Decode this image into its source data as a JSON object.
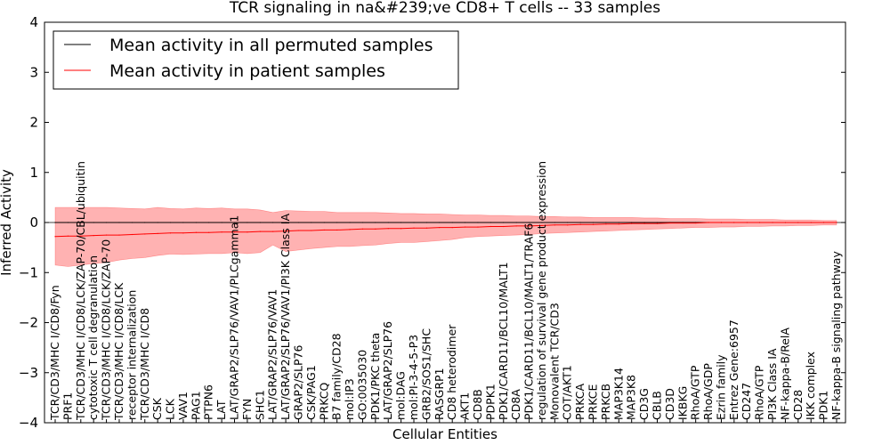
{
  "chart_data": {
    "type": "line",
    "title": "TCR signaling in na&#239;ve CD8+ T cells -- 33 samples",
    "xlabel": "Cellular Entities",
    "ylabel": "Inferred Activity",
    "ylim": [
      -4,
      4
    ],
    "yticks": [
      -4,
      -3,
      -2,
      -1,
      0,
      1,
      2,
      3,
      4
    ],
    "legend_location": "top-left",
    "entities": [
      {
        "label": "TCR/CD3/MHC I/CD8/Fyn",
        "perm_mean": 0.0,
        "patient_mean": -0.28,
        "band_low": -0.85,
        "band_high": 0.3
      },
      {
        "label": "PRF1",
        "perm_mean": 0.0,
        "patient_mean": -0.27,
        "band_low": -0.88,
        "band_high": 0.3
      },
      {
        "label": "TCR/CD3/MHC I/CD8/LCK/ZAP-70/CBL/ubiquitin",
        "perm_mean": 0.0,
        "patient_mean": -0.27,
        "band_low": -0.85,
        "band_high": 0.3
      },
      {
        "label": "cytotoxic T cell degranulation",
        "perm_mean": 0.0,
        "patient_mean": -0.26,
        "band_low": -0.82,
        "band_high": 0.3
      },
      {
        "label": "TCR/CD3/MHC I/CD8/LCK/ZAP-70",
        "perm_mean": 0.0,
        "patient_mean": -0.25,
        "band_low": -0.8,
        "band_high": 0.3
      },
      {
        "label": "TCR/CD3/MHC I/CD8/LCK",
        "perm_mean": 0.0,
        "patient_mean": -0.25,
        "band_low": -0.75,
        "band_high": 0.29
      },
      {
        "label": "receptor internalization",
        "perm_mean": 0.0,
        "patient_mean": -0.24,
        "band_low": -0.72,
        "band_high": 0.28
      },
      {
        "label": "TCR/CD3/MHC I/CD8",
        "perm_mean": 0.0,
        "patient_mean": -0.23,
        "band_low": -0.7,
        "band_high": 0.27
      },
      {
        "label": "CSK",
        "perm_mean": 0.0,
        "patient_mean": -0.22,
        "band_low": -0.66,
        "band_high": 0.3
      },
      {
        "label": "LCK",
        "perm_mean": 0.0,
        "patient_mean": -0.21,
        "band_low": -0.63,
        "band_high": 0.28
      },
      {
        "label": "VAV1",
        "perm_mean": 0.0,
        "patient_mean": -0.21,
        "band_low": -0.64,
        "band_high": 0.27
      },
      {
        "label": "PAG1",
        "perm_mean": 0.0,
        "patient_mean": -0.2,
        "band_low": -0.63,
        "band_high": 0.29
      },
      {
        "label": "PTPN6",
        "perm_mean": 0.0,
        "patient_mean": -0.2,
        "band_low": -0.62,
        "band_high": 0.28
      },
      {
        "label": "LAT",
        "perm_mean": 0.0,
        "patient_mean": -0.19,
        "band_low": -0.62,
        "band_high": 0.29
      },
      {
        "label": "LAT/GRAP2/SLP76/VAV1/PLCgamma1",
        "perm_mean": 0.0,
        "patient_mean": -0.19,
        "band_low": -0.6,
        "band_high": 0.27
      },
      {
        "label": "FYN",
        "perm_mean": 0.0,
        "patient_mean": -0.19,
        "band_low": -0.62,
        "band_high": 0.27
      },
      {
        "label": "SHC1",
        "perm_mean": 0.0,
        "patient_mean": -0.18,
        "band_low": -0.6,
        "band_high": 0.25
      },
      {
        "label": "LAT/GRAP2/SLP76/VAV1",
        "perm_mean": 0.0,
        "patient_mean": -0.18,
        "band_low": -0.45,
        "band_high": 0.2
      },
      {
        "label": "LAT/GRAP2/SLP76/VAV1/PI3K Class IA",
        "perm_mean": 0.0,
        "patient_mean": -0.17,
        "band_low": -0.58,
        "band_high": 0.24
      },
      {
        "label": "GRAP2/SLP76",
        "perm_mean": 0.0,
        "patient_mean": -0.16,
        "band_low": -0.55,
        "band_high": 0.23
      },
      {
        "label": "CSK/PAG1",
        "perm_mean": 0.0,
        "patient_mean": -0.16,
        "band_low": -0.52,
        "band_high": 0.22
      },
      {
        "label": "PRKCQ",
        "perm_mean": 0.0,
        "patient_mean": -0.15,
        "band_low": -0.5,
        "band_high": 0.22
      },
      {
        "label": "B7 family/CD28",
        "perm_mean": 0.0,
        "patient_mean": -0.15,
        "band_low": -0.48,
        "band_high": 0.2
      },
      {
        "label": "mol:IP3",
        "perm_mean": 0.0,
        "patient_mean": -0.14,
        "band_low": -0.48,
        "band_high": 0.2
      },
      {
        "label": "GO:0035030",
        "perm_mean": 0.0,
        "patient_mean": -0.13,
        "band_low": -0.46,
        "band_high": 0.2
      },
      {
        "label": "PDK1/PKC theta",
        "perm_mean": 0.0,
        "patient_mean": -0.13,
        "band_low": -0.45,
        "band_high": 0.2
      },
      {
        "label": "LAT/GRAP2/SLP76",
        "perm_mean": 0.0,
        "patient_mean": -0.12,
        "band_low": -0.42,
        "band_high": 0.19
      },
      {
        "label": "mol:DAG",
        "perm_mean": 0.0,
        "patient_mean": -0.12,
        "band_low": -0.4,
        "band_high": 0.18
      },
      {
        "label": "mol:PI-3-4-5-P3",
        "perm_mean": 0.0,
        "patient_mean": -0.11,
        "band_low": -0.4,
        "band_high": 0.18
      },
      {
        "label": "GRB2/SOS1/SHC",
        "perm_mean": 0.0,
        "patient_mean": -0.11,
        "band_low": -0.38,
        "band_high": 0.17
      },
      {
        "label": "RASGRP1",
        "perm_mean": 0.0,
        "patient_mean": -0.1,
        "band_low": -0.36,
        "band_high": 0.17
      },
      {
        "label": "CD8 heterodimer",
        "perm_mean": 0.0,
        "patient_mean": -0.1,
        "band_low": -0.34,
        "band_high": 0.16
      },
      {
        "label": "AKT1",
        "perm_mean": 0.0,
        "patient_mean": -0.09,
        "band_low": -0.3,
        "band_high": 0.15
      },
      {
        "label": "CD8B",
        "perm_mean": 0.0,
        "patient_mean": -0.09,
        "band_low": -0.28,
        "band_high": 0.15
      },
      {
        "label": "PDPK1",
        "perm_mean": 0.0,
        "patient_mean": -0.08,
        "band_low": -0.27,
        "band_high": 0.14
      },
      {
        "label": "PDK1/CARD11/BCL10/MALT1",
        "perm_mean": 0.0,
        "patient_mean": -0.08,
        "band_low": -0.26,
        "band_high": 0.14
      },
      {
        "label": "CD8A",
        "perm_mean": 0.0,
        "patient_mean": -0.07,
        "band_low": -0.25,
        "band_high": 0.13
      },
      {
        "label": "PDK1/CARD11/BCL10/MALT1/TRAF6",
        "perm_mean": 0.0,
        "patient_mean": -0.07,
        "band_low": -0.24,
        "band_high": 0.13
      },
      {
        "label": "regulation of survival gene product expression",
        "perm_mean": 0.0,
        "patient_mean": -0.06,
        "band_low": -0.22,
        "band_high": 0.12
      },
      {
        "label": "Monovalent TCR/CD3",
        "perm_mean": 0.0,
        "patient_mean": -0.05,
        "band_low": -0.21,
        "band_high": 0.12
      },
      {
        "label": "COT/AKT1",
        "perm_mean": 0.0,
        "patient_mean": -0.05,
        "band_low": -0.2,
        "band_high": 0.11
      },
      {
        "label": "PRKCA",
        "perm_mean": 0.0,
        "patient_mean": -0.04,
        "band_low": -0.19,
        "band_high": 0.11
      },
      {
        "label": "PRKCE",
        "perm_mean": 0.0,
        "patient_mean": -0.04,
        "band_low": -0.18,
        "band_high": 0.1
      },
      {
        "label": "PRKCB",
        "perm_mean": 0.0,
        "patient_mean": -0.03,
        "band_low": -0.17,
        "band_high": 0.1
      },
      {
        "label": "MAP3K14",
        "perm_mean": 0.0,
        "patient_mean": -0.03,
        "band_low": -0.16,
        "band_high": 0.1
      },
      {
        "label": "MAP3K8",
        "perm_mean": 0.0,
        "patient_mean": -0.02,
        "band_low": -0.15,
        "band_high": 0.1
      },
      {
        "label": "CD3G",
        "perm_mean": 0.0,
        "patient_mean": -0.02,
        "band_low": -0.14,
        "band_high": 0.09
      },
      {
        "label": "CBLB",
        "perm_mean": 0.0,
        "patient_mean": -0.02,
        "band_low": -0.13,
        "band_high": 0.09
      },
      {
        "label": "CD3D",
        "perm_mean": 0.0,
        "patient_mean": -0.01,
        "band_low": -0.12,
        "band_high": 0.08
      },
      {
        "label": "IKBKG",
        "perm_mean": 0.0,
        "patient_mean": -0.01,
        "band_low": -0.11,
        "band_high": 0.08
      },
      {
        "label": "RhoA/GTP",
        "perm_mean": 0.0,
        "patient_mean": -0.01,
        "band_low": -0.1,
        "band_high": 0.08
      },
      {
        "label": "RhoA/GDP",
        "perm_mean": 0.0,
        "patient_mean": 0.0,
        "band_low": -0.1,
        "band_high": 0.07
      },
      {
        "label": "Ezrin family",
        "perm_mean": 0.0,
        "patient_mean": 0.0,
        "band_low": -0.09,
        "band_high": 0.07
      },
      {
        "label": "Entrez Gene:6957",
        "perm_mean": 0.0,
        "patient_mean": 0.0,
        "band_low": -0.09,
        "band_high": 0.07
      },
      {
        "label": "CD247",
        "perm_mean": 0.0,
        "patient_mean": 0.0,
        "band_low": -0.08,
        "band_high": 0.06
      },
      {
        "label": "RhoA/GTP",
        "perm_mean": 0.0,
        "patient_mean": 0.0,
        "band_low": -0.08,
        "band_high": 0.06
      },
      {
        "label": "PI3K Class IA",
        "perm_mean": 0.0,
        "patient_mean": 0.0,
        "band_low": -0.07,
        "band_high": 0.06
      },
      {
        "label": "NF-kappa-B/RelA",
        "perm_mean": 0.0,
        "patient_mean": 0.0,
        "band_low": -0.07,
        "band_high": 0.05
      },
      {
        "label": "CD28",
        "perm_mean": 0.0,
        "patient_mean": 0.0,
        "band_low": -0.06,
        "band_high": 0.05
      },
      {
        "label": "IKK complex",
        "perm_mean": 0.0,
        "patient_mean": 0.0,
        "band_low": -0.06,
        "band_high": 0.05
      },
      {
        "label": "PDK1",
        "perm_mean": 0.0,
        "patient_mean": 0.0,
        "band_low": -0.05,
        "band_high": 0.04
      },
      {
        "label": "NF-kappa-B signaling pathway",
        "perm_mean": 0.0,
        "patient_mean": 0.0,
        "band_low": -0.05,
        "band_high": 0.04
      }
    ],
    "series": [
      {
        "name": "Mean activity in all permuted samples",
        "color": "#000000",
        "key": "perm_mean"
      },
      {
        "name": "Mean activity in patient samples",
        "color": "#ff0000",
        "key": "patient_mean"
      }
    ],
    "band_color": "#ff7f7f"
  }
}
